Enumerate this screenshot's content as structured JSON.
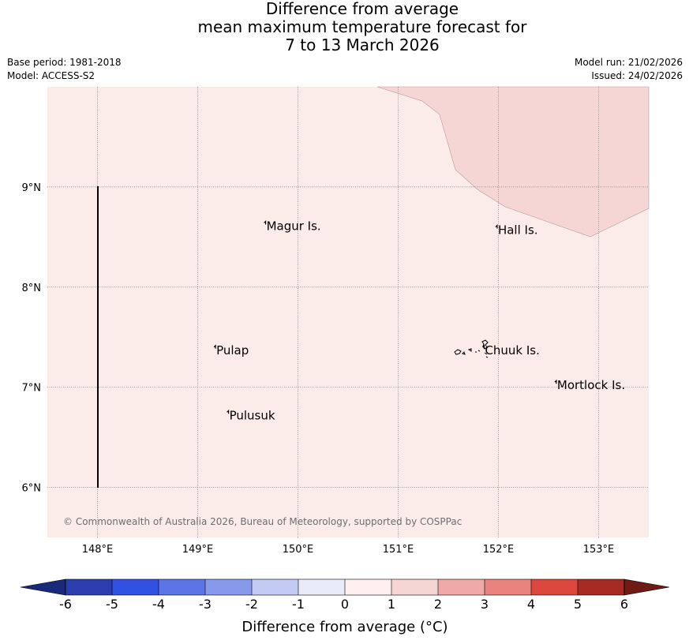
{
  "header": {
    "title_line1": "Difference from average",
    "title_line2": "mean maximum temperature forecast for",
    "title_line3": "7 to 13 March 2026",
    "base_period": "Base period: 1981-2018",
    "model": "Model: ACCESS-S2",
    "model_run": "Model run: 21/02/2026",
    "issued": "Issued: 24/02/2026"
  },
  "map": {
    "background_color": "#fbebe9",
    "warm_region_color": "#f6d6d4",
    "lon_range": [
      147.5,
      153.5
    ],
    "lat_range": [
      5.5,
      10.0
    ],
    "x_ticks": [
      "148°E",
      "149°E",
      "150°E",
      "151°E",
      "152°E",
      "153°E"
    ],
    "y_ticks": [
      "9°N",
      "8°N",
      "7°N",
      "6°N"
    ],
    "places": [
      {
        "name": "Magur Is.",
        "lon": 149.67,
        "lat": 8.57
      },
      {
        "name": "Hall Is.",
        "lon": 151.98,
        "lat": 8.53
      },
      {
        "name": "Pulap",
        "lon": 149.17,
        "lat": 7.33
      },
      {
        "name": "Chuuk Is.",
        "lon": 151.85,
        "lat": 7.33
      },
      {
        "name": "Mortlock Is.",
        "lon": 152.57,
        "lat": 6.98
      },
      {
        "name": "Pulusuk",
        "lon": 149.3,
        "lat": 6.68
      }
    ],
    "copyright": "© Commonwealth of Australia 2026, Bureau of Meteorology, supported by COSPPac"
  },
  "colorbar": {
    "label": "Difference from average (°C)",
    "ticks": [
      "-6",
      "-5",
      "-4",
      "-3",
      "-2",
      "-1",
      "0",
      "1",
      "2",
      "3",
      "4",
      "5",
      "6"
    ],
    "colors": [
      "#2a3fad",
      "#3151e2",
      "#5d74e6",
      "#8899ec",
      "#c2c9f3",
      "#e9ebfa",
      "#fdf0ee",
      "#f6d6d4",
      "#efa9a6",
      "#e8837d",
      "#db473d",
      "#a72b22"
    ],
    "under_color": "#1a2a7a",
    "over_color": "#6e1a15"
  }
}
